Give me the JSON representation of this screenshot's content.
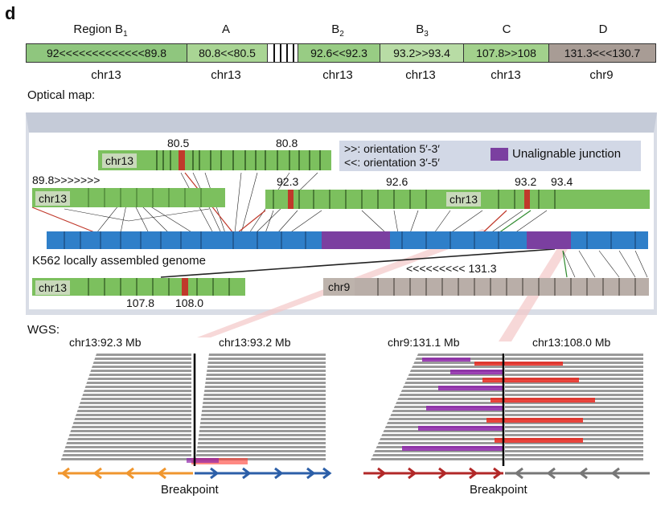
{
  "panel_letter": "d",
  "regions": {
    "titles": [
      {
        "main": "Region B",
        "sub": "1"
      },
      {
        "main": "A",
        "sub": ""
      },
      {
        "main": "B",
        "sub": "2"
      },
      {
        "main": "B",
        "sub": "3"
      },
      {
        "main": "C",
        "sub": ""
      },
      {
        "main": "D",
        "sub": ""
      }
    ],
    "segments": [
      {
        "text": "92<<<<<<<<<<<<<89.8",
        "color": "#8fc67e"
      },
      {
        "text": "80.8<<80.5",
        "color": "#a9d594"
      },
      {
        "text": "",
        "color": "#ffffff"
      },
      {
        "text": "92.6<<92.3",
        "color": "#98cc84"
      },
      {
        "text": "93.2>>93.4",
        "color": "#b8dca5"
      },
      {
        "text": "107.8>>108",
        "color": "#a2d18c"
      },
      {
        "text": "131.3<<<130.7",
        "color": "#a89c95"
      }
    ],
    "chromosomes": [
      "chr13",
      "chr13",
      "chr13",
      "chr13",
      "chr13",
      "chr9"
    ]
  },
  "optical_map": {
    "title": "Optical map:",
    "legend": {
      "fwd": ">>: orientation 5′-3′",
      "rev": "<<: orientation 3′-5′",
      "junction": "Unalignable junction",
      "junction_color": "#7b3fa0"
    },
    "tracks": {
      "top_chr": "chr13",
      "top_pos1": "80.5",
      "top_pos2": "80.8",
      "left_pos": "89.8>>>>>>>",
      "left_chr": "chr13",
      "right_pos1": "92.3",
      "right_pos2": "92.6",
      "right_chr": "chr13",
      "right_pos3": "93.2",
      "right_pos4": "93.4",
      "genome_label": "K562 locally assembled genome",
      "bottom_chr": "chr13",
      "bottom_pos1": "107.8",
      "bottom_pos2": "108.0",
      "chr9_label": "chr9",
      "chr9_pos": "<<<<<<<<< 131.3"
    },
    "colors": {
      "green": "#7cc05e",
      "blue": "#2f7fc9",
      "red": "#c0392b",
      "gray": "#b9aea8"
    }
  },
  "wgs": {
    "title": "WGS:",
    "left_titles": [
      "chr13:92.3 Mb",
      "chr13:93.2 Mb"
    ],
    "right_titles": [
      "chr9:131.1 Mb",
      "chr13:108.0 Mb"
    ],
    "breakpoint": "Breakpoint",
    "colors": {
      "orange": "#f0962e",
      "blue": "#2c5fa8",
      "darkred": "#b22828",
      "gray": "#777777",
      "purple": "#8e24aa",
      "red": "#e8281e"
    }
  }
}
